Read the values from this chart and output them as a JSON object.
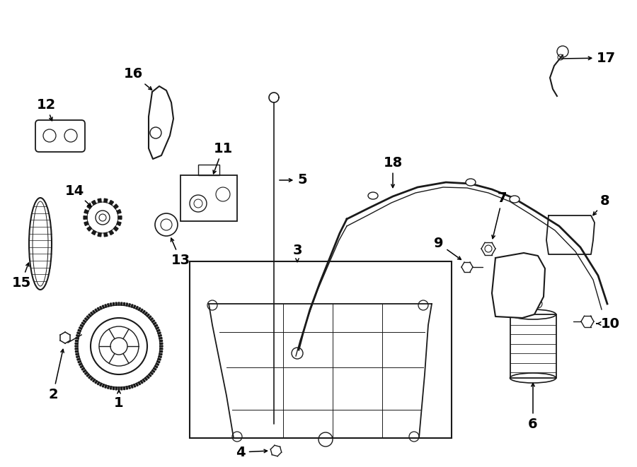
{
  "bg_color": "#ffffff",
  "line_color": "#1a1a1a",
  "fig_width": 9.0,
  "fig_height": 6.61,
  "dpi": 100,
  "num_fontsize": 14,
  "lw": 1.2
}
